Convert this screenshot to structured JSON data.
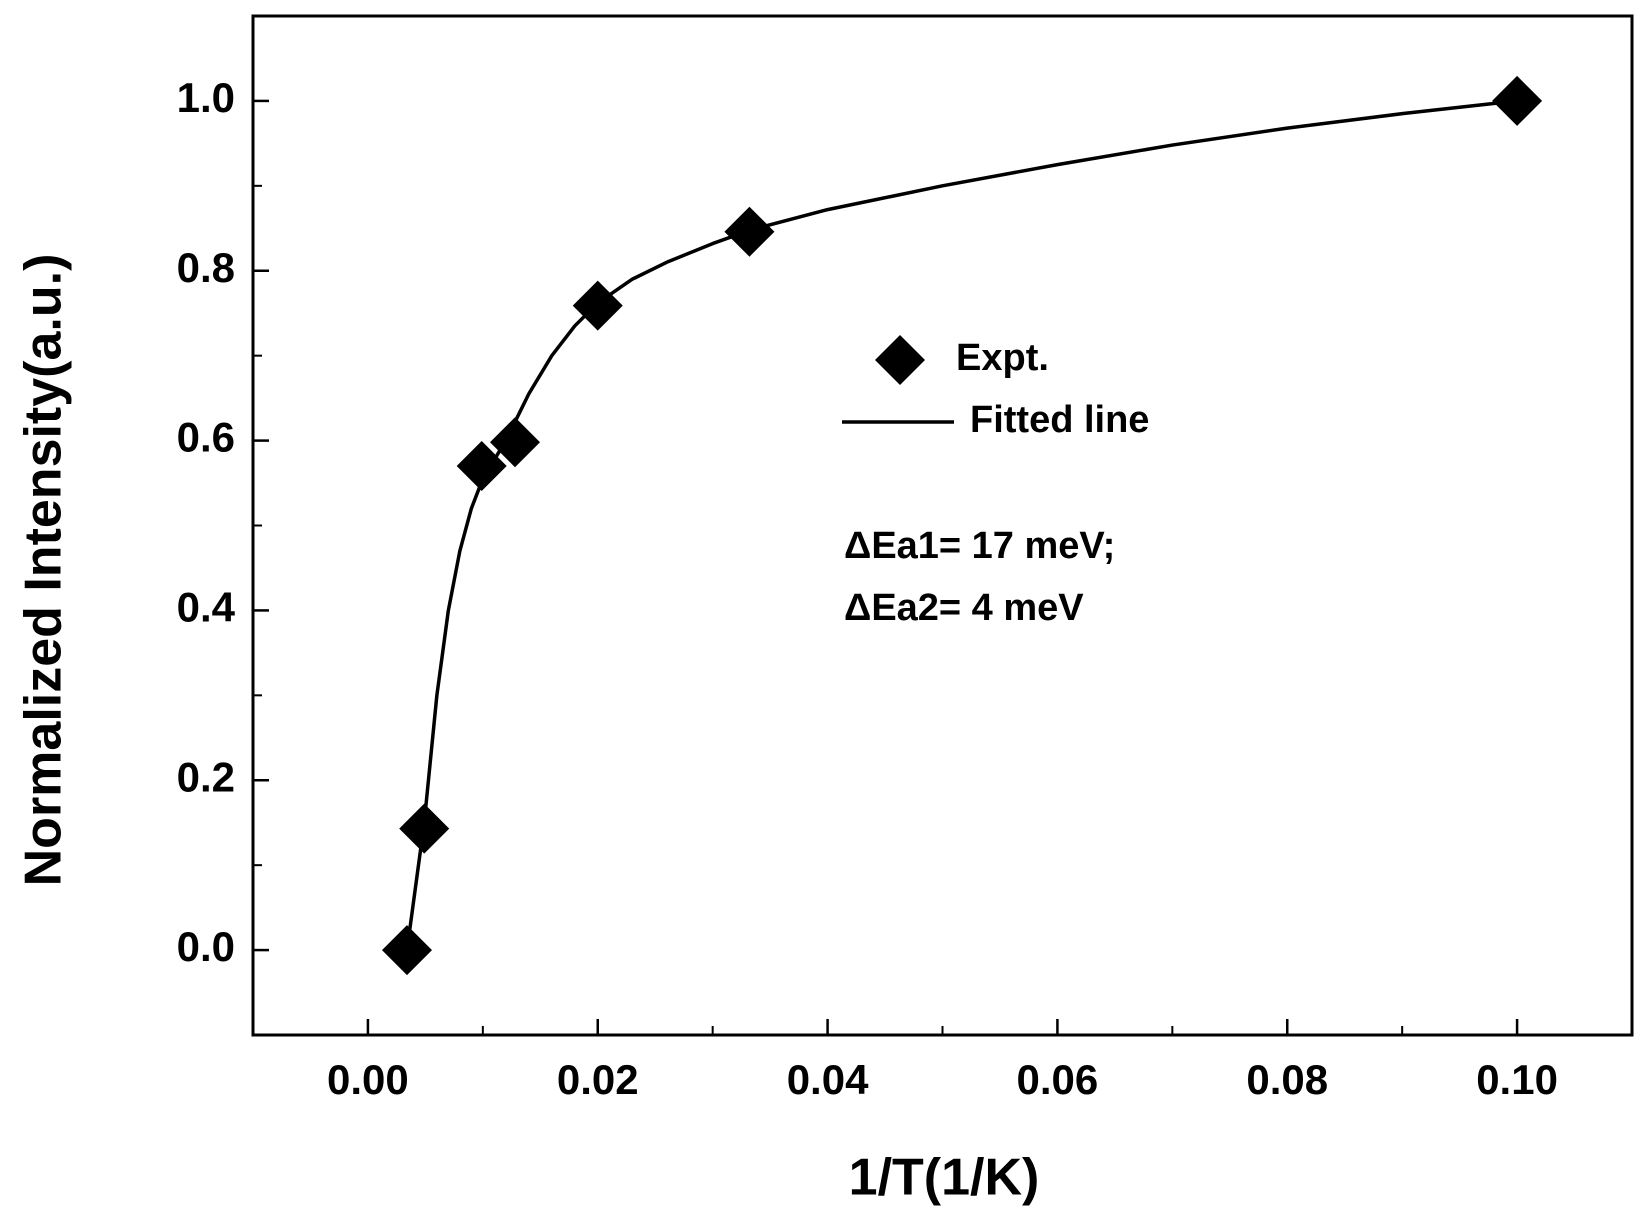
{
  "chart_data": {
    "type": "scatter",
    "x_label": "1/T(1/K)",
    "y_label": "Normalized Intensity(a.u.)",
    "series": [
      {
        "name": "Expt.",
        "color": "#000000",
        "mode": "markers",
        "marker": "diamond",
        "x": [
          0.0034,
          0.0049,
          0.0099,
          0.0128,
          0.02,
          0.0332,
          0.1
        ],
        "values": [
          0,
          0.143,
          0.57,
          0.598,
          0.759,
          0.846,
          1.0
        ]
      },
      {
        "name": "Fitted line",
        "color": "#000000",
        "mode": "lines",
        "x": [
          0.0034,
          0.0049,
          0.006,
          0.007,
          0.008,
          0.009,
          0.01,
          0.012,
          0.014,
          0.016,
          0.018,
          0.02,
          0.023,
          0.026,
          0.03,
          0.0333,
          0.04,
          0.05,
          0.06,
          0.07,
          0.08,
          0.09,
          0.1
        ],
        "values": [
          0,
          0.15,
          0.3,
          0.4,
          0.47,
          0.52,
          0.555,
          0.6,
          0.655,
          0.7,
          0.735,
          0.762,
          0.79,
          0.81,
          0.832,
          0.848,
          0.872,
          0.9,
          0.925,
          0.948,
          0.968,
          0.985,
          1.0
        ]
      }
    ],
    "annotations": [
      "ΔEa1= 17 meV;",
      "ΔEa2= 4 meV"
    ],
    "xlim": [
      -0.01,
      0.11
    ],
    "xticks": [
      {
        "value": 0,
        "label": "0.00"
      },
      0.02,
      0.04,
      0.06,
      0.08,
      {
        "value": 0.1,
        "label": "0.10"
      }
    ],
    "ylim": [
      -0.1,
      1.1
    ],
    "yticks": [
      {
        "value": 0,
        "label": "0.0"
      },
      0.2,
      0.4,
      0.6,
      0.8,
      {
        "value": 1,
        "label": "1.0"
      }
    ],
    "grid": false
  }
}
